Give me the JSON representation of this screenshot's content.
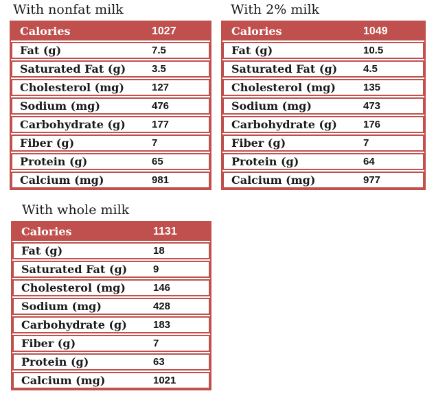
{
  "colors": {
    "accent": "#c0504d",
    "border": "#c14f4b",
    "header_text": "#ffffff",
    "body_text": "#1a1a1a",
    "background": "#ffffff"
  },
  "chart_data": [
    {
      "type": "table",
      "title": "With nonfat milk",
      "header": {
        "label": "Calories",
        "value": "1027"
      },
      "rows": [
        {
          "label": "Fat (g)",
          "value": "7.5"
        },
        {
          "label": "Saturated Fat (g)",
          "value": "3.5"
        },
        {
          "label": "Cholesterol (mg)",
          "value": "127"
        },
        {
          "label": "Sodium (mg)",
          "value": "476"
        },
        {
          "label": "Carbohydrate (g)",
          "value": "177"
        },
        {
          "label": "Fiber (g)",
          "value": "7"
        },
        {
          "label": "Protein (g)",
          "value": "65"
        },
        {
          "label": "Calcium (mg)",
          "value": "981"
        }
      ]
    },
    {
      "type": "table",
      "title": "With 2% milk",
      "header": {
        "label": "Calories",
        "value": "1049"
      },
      "rows": [
        {
          "label": "Fat (g)",
          "value": "10.5"
        },
        {
          "label": "Saturated Fat (g)",
          "value": "4.5"
        },
        {
          "label": "Cholesterol (mg)",
          "value": "135"
        },
        {
          "label": "Sodium (mg)",
          "value": "473"
        },
        {
          "label": "Carbohydrate (g)",
          "value": "176"
        },
        {
          "label": "Fiber (g)",
          "value": "7"
        },
        {
          "label": "Protein (g)",
          "value": "64"
        },
        {
          "label": "Calcium (mg)",
          "value": "977"
        }
      ]
    },
    {
      "type": "table",
      "title": "With whole milk",
      "header": {
        "label": "Calories",
        "value": "1131"
      },
      "rows": [
        {
          "label": "Fat (g)",
          "value": "18"
        },
        {
          "label": "Saturated Fat (g)",
          "value": "9"
        },
        {
          "label": "Cholesterol (mg)",
          "value": "146"
        },
        {
          "label": "Sodium (mg)",
          "value": "428"
        },
        {
          "label": "Carbohydrate (g)",
          "value": "183"
        },
        {
          "label": "Fiber (g)",
          "value": "7"
        },
        {
          "label": "Protein (g)",
          "value": "63"
        },
        {
          "label": "Calcium (mg)",
          "value": "1021"
        }
      ]
    }
  ]
}
